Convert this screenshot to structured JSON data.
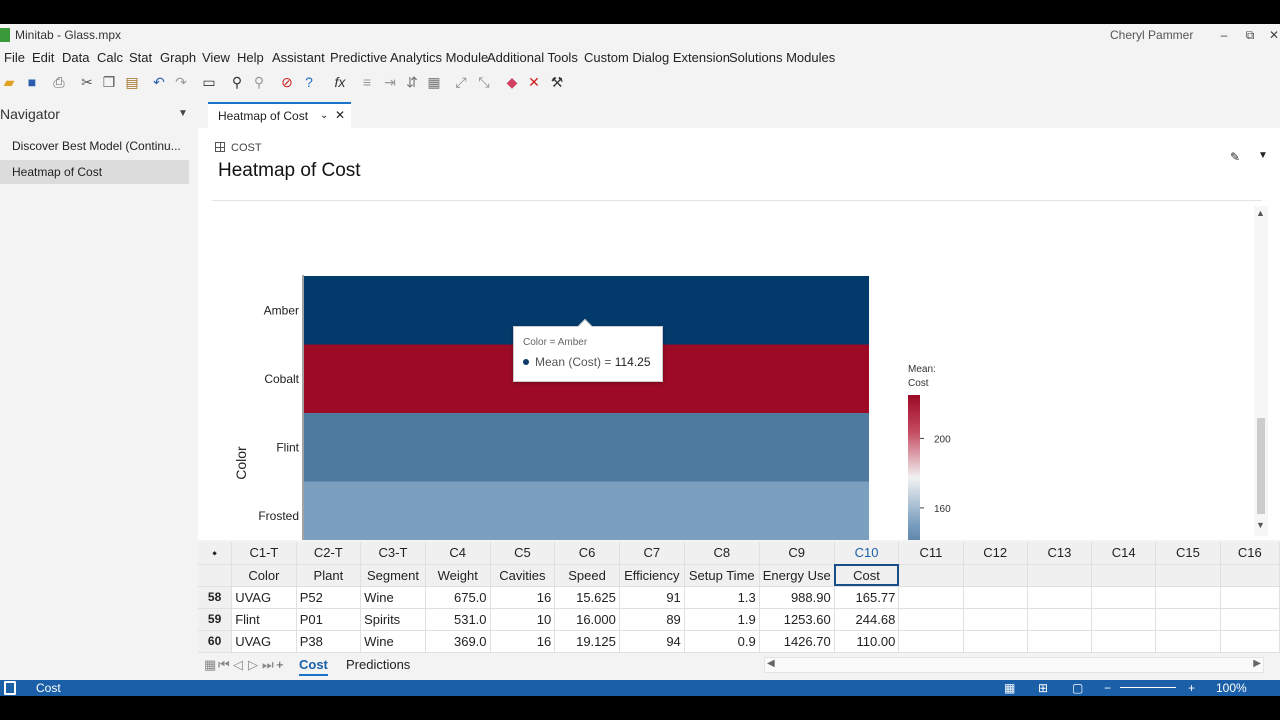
{
  "app": {
    "title": "Minitab - Glass.mpx",
    "user": "Cheryl Pammer"
  },
  "window_buttons": {
    "minimize": "–",
    "restore": "⧉",
    "close": "✕"
  },
  "menu": [
    "File",
    "Edit",
    "Data",
    "Calc",
    "Stat",
    "Graph",
    "View",
    "Help",
    "Assistant",
    "Predictive Analytics Module",
    "Additional Tools",
    "Custom Dialog Extension",
    "Solutions Modules"
  ],
  "navigator": {
    "header": "Navigator",
    "items": [
      "Discover Best Model (Continu...",
      "Heatmap of Cost"
    ]
  },
  "doc_tab": {
    "label": "Heatmap of Cost"
  },
  "output": {
    "subtitle": "COST",
    "title": "Heatmap of Cost"
  },
  "tooltip": {
    "title": "Color = Amber",
    "line_label": "Mean (Cost) = ",
    "line_value": "114.25"
  },
  "chart_data": {
    "type": "heatmap",
    "ylabel": "Color",
    "categories": [
      "Amber",
      "Cobalt",
      "Flint",
      "Frosted"
    ],
    "values": [
      114.25,
      218,
      156,
      150
    ],
    "colors": [
      "#023a6c",
      "#9c0a25",
      "#4f7aa0",
      "#7b9fbf"
    ],
    "legend": {
      "title_line1": "Mean:",
      "title_line2": "Cost",
      "ticks": [
        200,
        160
      ],
      "range": [
        130,
        225
      ]
    }
  },
  "worksheet": {
    "col_ids": [
      "C1-T",
      "C2-T",
      "C3-T",
      "C4",
      "C5",
      "C6",
      "C7",
      "C8",
      "C9",
      "C10",
      "C11",
      "C12",
      "C13",
      "C14",
      "C15",
      "C16"
    ],
    "col_names": [
      "Color",
      "Plant",
      "Segment",
      "Weight",
      "Cavities",
      "Speed",
      "Efficiency",
      "Setup Time",
      "Energy Use",
      "Cost",
      "",
      "",
      "",
      "",
      "",
      ""
    ],
    "rows": [
      {
        "n": "58",
        "cells": [
          "UVAG",
          "P52",
          "Wine",
          "675.0",
          "16",
          "15.625",
          "91",
          "1.3",
          "988.90",
          "165.77"
        ]
      },
      {
        "n": "59",
        "cells": [
          "Flint",
          "P01",
          "Spirits",
          "531.0",
          "10",
          "16.000",
          "89",
          "1.9",
          "1253.60",
          "244.68"
        ]
      },
      {
        "n": "60",
        "cells": [
          "UVAG",
          "P38",
          "Wine",
          "369.0",
          "16",
          "19.125",
          "94",
          "0.9",
          "1426.70",
          "110.00"
        ]
      }
    ],
    "tabs": [
      "Cost",
      "Predictions"
    ]
  },
  "status": {
    "label": "Cost",
    "zoom": "100%"
  },
  "colors": {
    "accent": "#1a5fa8",
    "amber_cell": "#023a6c"
  }
}
